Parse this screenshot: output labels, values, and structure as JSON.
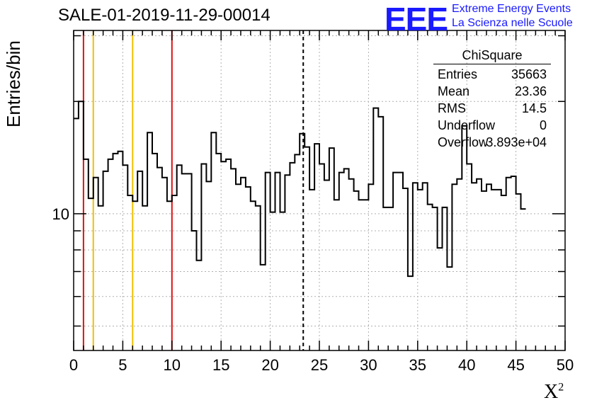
{
  "header": {
    "title": "SALE-01-2019-11-29-00014",
    "logo_text": "EEE",
    "logo_line1": "Extreme Energy Events",
    "logo_line2": "La Scienza nelle Scuole"
  },
  "axes": {
    "ylabel": "Entries/bin",
    "xlabel": "X",
    "xlabel_sup": "2"
  },
  "stats": {
    "title": "ChiSquare",
    "rows": [
      {
        "key": "Entries",
        "value": "35663"
      },
      {
        "key": "Mean",
        "value": "23.36"
      },
      {
        "key": "RMS",
        "value": "14.5"
      },
      {
        "key": "Underflow",
        "value": "0"
      },
      {
        "key": "Overflow",
        "value": "3.893e+04"
      }
    ]
  },
  "colors": {
    "red_line": "#dd1111",
    "yellow_line": "#f0c000",
    "grid": "#b0b0b0",
    "hist": "#000000",
    "logo": "#1a1aff"
  },
  "chart_data": {
    "type": "histogram",
    "title": "SALE-01-2019-11-29-00014",
    "xlabel": "X²",
    "ylabel": "Entries/bin",
    "xlim": [
      0,
      50
    ],
    "ylim": [
      4.3,
      31
    ],
    "yscale": "log",
    "grid": true,
    "legend": "stats box top-right",
    "x_ticks": [
      0,
      5,
      10,
      15,
      20,
      25,
      30,
      35,
      40,
      45,
      50
    ],
    "y_tick_labels": [
      {
        "value": 10,
        "label": "10"
      }
    ],
    "bin_width": 0.5,
    "values": [
      18,
      20,
      14,
      11,
      12.5,
      10.5,
      13,
      14,
      14.5,
      14.7,
      13.5,
      11.2,
      10.8,
      13,
      10.5,
      16.5,
      14.5,
      13.3,
      12.5,
      10.8,
      11.2,
      13.5,
      12.8,
      12.8,
      9,
      7.5,
      13.6,
      12.2,
      16.5,
      14.5,
      13.8,
      14,
      13.2,
      12,
      12.5,
      11.8,
      10.8,
      10.5,
      7.3,
      12.9,
      10.1,
      12.9,
      10.1,
      12.7,
      13.7,
      14.4,
      16.4,
      15.1,
      11.6,
      15.4,
      13.6,
      12.3,
      15.0,
      10.9,
      12.9,
      13.2,
      12.4,
      11.5,
      10.9,
      10.9,
      12.0,
      19.2,
      18.2,
      10.4,
      10.4,
      12.9,
      12.9,
      11.7,
      6.8,
      12.1,
      11.6,
      12.1,
      10.6,
      10.4,
      8.1,
      10.4,
      7.2,
      12.0,
      12.4,
      17.2,
      13.6,
      12.1,
      12.4,
      11.5,
      12.0,
      11.6,
      11.6,
      11.2,
      12.5,
      12.6,
      11.3,
      10.3
    ],
    "reference_lines": [
      {
        "x": 1,
        "color": "red"
      },
      {
        "x": 2,
        "color": "yellow"
      },
      {
        "x": 6,
        "color": "yellow"
      },
      {
        "x": 10,
        "color": "red"
      },
      {
        "x": 23.36,
        "color": "black",
        "style": "dashed"
      }
    ]
  }
}
